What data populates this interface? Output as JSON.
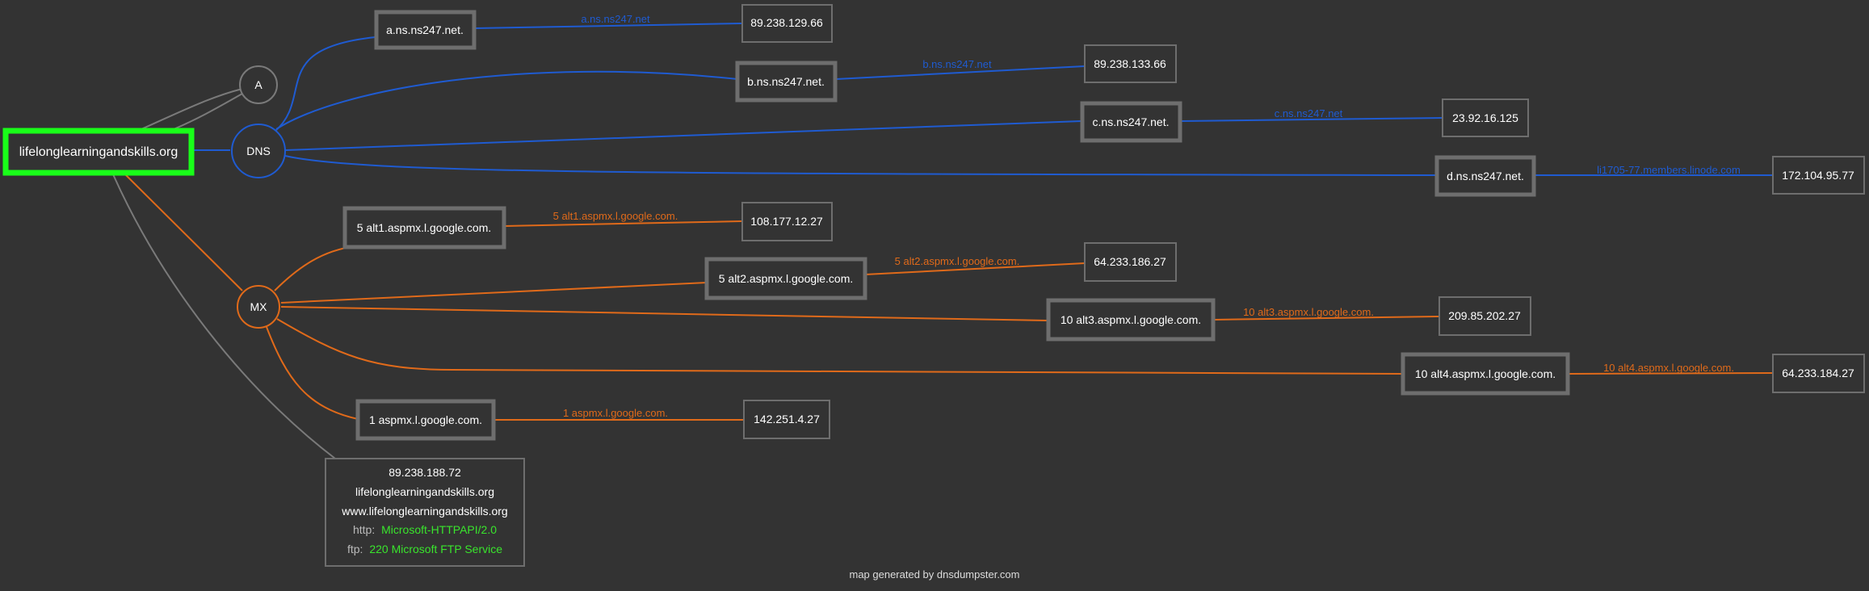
{
  "colors": {
    "background": "#333333",
    "dns": "#1f5bd1",
    "mx": "#e06a1a",
    "a": "#7a7a7a",
    "root_border": "#19ff19",
    "box_border": "#6e6e6e",
    "text": "#ffffff",
    "label_gray": "#bbbbbb",
    "banner_green": "#39e52c"
  },
  "root": {
    "label": "lifelonglearningandskills.org"
  },
  "hubs": {
    "a": "A",
    "dns": "DNS",
    "mx": "MX"
  },
  "ns_records": [
    {
      "host": "a.ns.ns247.net.",
      "ptr": "a.ns.ns247.net",
      "ip": "89.238.129.66"
    },
    {
      "host": "b.ns.ns247.net.",
      "ptr": "b.ns.ns247.net",
      "ip": "89.238.133.66"
    },
    {
      "host": "c.ns.ns247.net.",
      "ptr": "c.ns.ns247.net",
      "ip": "23.92.16.125"
    },
    {
      "host": "d.ns.ns247.net.",
      "ptr": "li1705-77.members.linode.com",
      "ip": "172.104.95.77"
    }
  ],
  "mx_records": [
    {
      "host": "5 alt1.aspmx.l.google.com.",
      "ptr": "5 alt1.aspmx.l.google.com.",
      "ip": "108.177.12.27"
    },
    {
      "host": "5 alt2.aspmx.l.google.com.",
      "ptr": "5 alt2.aspmx.l.google.com.",
      "ip": "64.233.186.27"
    },
    {
      "host": "10 alt3.aspmx.l.google.com.",
      "ptr": "10 alt3.aspmx.l.google.com.",
      "ip": "209.85.202.27"
    },
    {
      "host": "10 alt4.aspmx.l.google.com.",
      "ptr": "10 alt4.aspmx.l.google.com.",
      "ip": "64.233.184.27"
    },
    {
      "host": "1 aspmx.l.google.com.",
      "ptr": "1 aspmx.l.google.com.",
      "ip": "142.251.4.27"
    }
  ],
  "a_record": {
    "ip": "89.238.188.72",
    "names": [
      "lifelonglearningandskills.org",
      "www.lifelonglearningandskills.org"
    ],
    "banners": [
      {
        "service": "http:",
        "value": "Microsoft-HTTPAPI/2.0"
      },
      {
        "service": "ftp:",
        "value": "220 Microsoft FTP Service"
      }
    ]
  },
  "footer": "map generated by dnsdumpster.com"
}
